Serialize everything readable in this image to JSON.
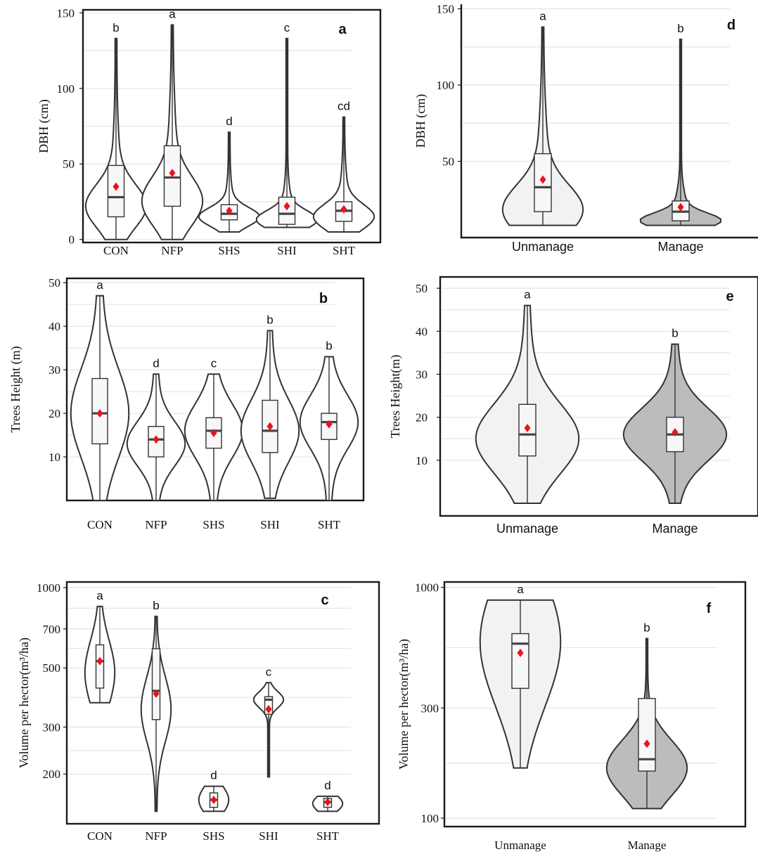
{
  "chart_data": [
    {
      "type": "violin",
      "panel": "a",
      "ylabel": "DBH (cm)",
      "ylim": [
        -2,
        152
      ],
      "yticks": [
        0,
        50,
        100,
        150
      ],
      "categories": [
        "CON",
        "NFP",
        "SHS",
        "SHI",
        "SHT"
      ],
      "significance": [
        "b",
        "a",
        "d",
        "c",
        "cd"
      ],
      "fill": "#ffffff",
      "groups": [
        {
          "min": 0,
          "max": 133,
          "q1": 15,
          "median": 28,
          "q3": 49,
          "mean": 35,
          "mode": 22,
          "spread": 14
        },
        {
          "min": 0,
          "max": 142,
          "q1": 22,
          "median": 41,
          "q3": 62,
          "mean": 44,
          "mode": 25,
          "spread": 16
        },
        {
          "min": 5,
          "max": 71,
          "q1": 13,
          "median": 17,
          "q3": 23,
          "mean": 19,
          "mode": 15,
          "spread": 6
        },
        {
          "min": 8,
          "max": 133,
          "q1": 10,
          "median": 17,
          "q3": 28,
          "mean": 22,
          "mode": 13,
          "spread": 6
        },
        {
          "min": 5,
          "max": 81,
          "q1": 12,
          "median": 19,
          "q3": 25,
          "mean": 20,
          "mode": 15,
          "spread": 8
        }
      ]
    },
    {
      "type": "violin",
      "panel": "d",
      "ylabel": "DBH (cm)",
      "ylim": [
        0,
        153
      ],
      "yticks": [
        50,
        100,
        150
      ],
      "categories": [
        "Unmanage",
        "Manage"
      ],
      "significance": [
        "a",
        "b"
      ],
      "fill": "#f2f2f2",
      "fill2": "#bcbcbc",
      "groups": [
        {
          "min": 8,
          "max": 138,
          "q1": 17,
          "median": 33,
          "q3": 55,
          "mean": 38,
          "mode": 18,
          "spread": 16
        },
        {
          "min": 8,
          "max": 130,
          "q1": 11,
          "median": 17,
          "q3": 24,
          "mean": 20,
          "mode": 11,
          "spread": 5
        }
      ]
    },
    {
      "type": "violin",
      "panel": "b",
      "ylabel": "Trees Height (m)",
      "ylim": [
        0,
        51
      ],
      "yticks": [
        10,
        20,
        30,
        40,
        50
      ],
      "categories": [
        "CON",
        "NFP",
        "SHS",
        "SHI",
        "SHT"
      ],
      "significance": [
        "a",
        "d",
        "c",
        "b",
        "b"
      ],
      "fill": "#ffffff",
      "groups": [
        {
          "min": 0,
          "max": 47,
          "q1": 13,
          "median": 20,
          "q3": 28,
          "mean": 20,
          "mode": 20,
          "spread": 10
        },
        {
          "min": 0,
          "max": 29,
          "q1": 10,
          "median": 14,
          "q3": 17,
          "mean": 14,
          "mode": 13,
          "spread": 5
        },
        {
          "min": 0,
          "max": 29,
          "q1": 12,
          "median": 16,
          "q3": 19,
          "mean": 15.5,
          "mode": 16,
          "spread": 6
        },
        {
          "min": 0.5,
          "max": 39,
          "q1": 11,
          "median": 16,
          "q3": 23,
          "mean": 17,
          "mode": 16,
          "spread": 7
        },
        {
          "min": 0,
          "max": 33,
          "q1": 14,
          "median": 18,
          "q3": 20,
          "mean": 17.5,
          "mode": 18,
          "spread": 6
        }
      ]
    },
    {
      "type": "violin",
      "panel": "e",
      "ylabel": "Trees Height(m)",
      "ylim": [
        0,
        51
      ],
      "yticks": [
        10,
        20,
        30,
        40,
        50
      ],
      "categories": [
        "Unmanage",
        "Manage"
      ],
      "significance": [
        "a",
        "b"
      ],
      "fill": "#f2f2f2",
      "fill2": "#bcbcbc",
      "groups": [
        {
          "min": 0,
          "max": 46,
          "q1": 11,
          "median": 16,
          "q3": 23,
          "mean": 17.5,
          "mode": 15,
          "spread": 8
        },
        {
          "min": 0,
          "max": 37,
          "q1": 12,
          "median": 16,
          "q3": 20,
          "mean": 16.5,
          "mode": 16,
          "spread": 6
        }
      ]
    },
    {
      "type": "violin",
      "panel": "c",
      "ylabel": "Volume per hector(m³/ha)",
      "scale": "log",
      "ylim": [
        140,
        1000
      ],
      "yticks": [
        200,
        300,
        500,
        700,
        1000
      ],
      "categories": [
        "CON",
        "NFP",
        "SHS",
        "SHI",
        "SHT"
      ],
      "significance": [
        "a",
        "b",
        "d",
        "c",
        "d"
      ],
      "fill": "#ffffff",
      "groups": [
        {
          "min": 370,
          "max": 850,
          "q1": 420,
          "median": 530,
          "q3": 610,
          "mean": 530,
          "mode": 480,
          "spread": 0.12
        },
        {
          "min": 145,
          "max": 780,
          "q1": 320,
          "median": 410,
          "q3": 590,
          "mean": 400,
          "mode": 350,
          "spread": 0.12
        },
        {
          "min": 145,
          "max": 180,
          "q1": 150,
          "median": 160,
          "q3": 170,
          "mean": 160,
          "mode": 160,
          "spread": 0.05
        },
        {
          "min": 195,
          "max": 440,
          "q1": 335,
          "median": 380,
          "q3": 390,
          "mean": 350,
          "mode": 380,
          "spread": 0.03
        },
        {
          "min": 145,
          "max": 165,
          "q1": 150,
          "median": 157,
          "q3": 162,
          "mean": 157,
          "mode": 155,
          "spread": 0.03
        }
      ]
    },
    {
      "type": "violin",
      "panel": "f",
      "ylabel": "Volume per hector(m³/ha)",
      "scale": "log",
      "ylim": [
        100,
        1100
      ],
      "yticks": [
        100,
        300,
        1000
      ],
      "categories": [
        "Unmanage",
        "Manage"
      ],
      "significance": [
        "a",
        "b"
      ],
      "fill": "#f2f2f2",
      "fill2": "#bcbcbc",
      "groups": [
        {
          "min": 165,
          "max": 880,
          "q1": 365,
          "median": 570,
          "q3": 630,
          "mean": 520,
          "mode": 580,
          "spread": 0.28
        },
        {
          "min": 110,
          "max": 600,
          "q1": 160,
          "median": 180,
          "q3": 330,
          "mean": 210,
          "mode": 165,
          "spread": 0.12
        }
      ]
    }
  ],
  "colors": {
    "mean_marker": "#e8141c",
    "outline": "#333333",
    "grid": "#e4e4e4"
  }
}
